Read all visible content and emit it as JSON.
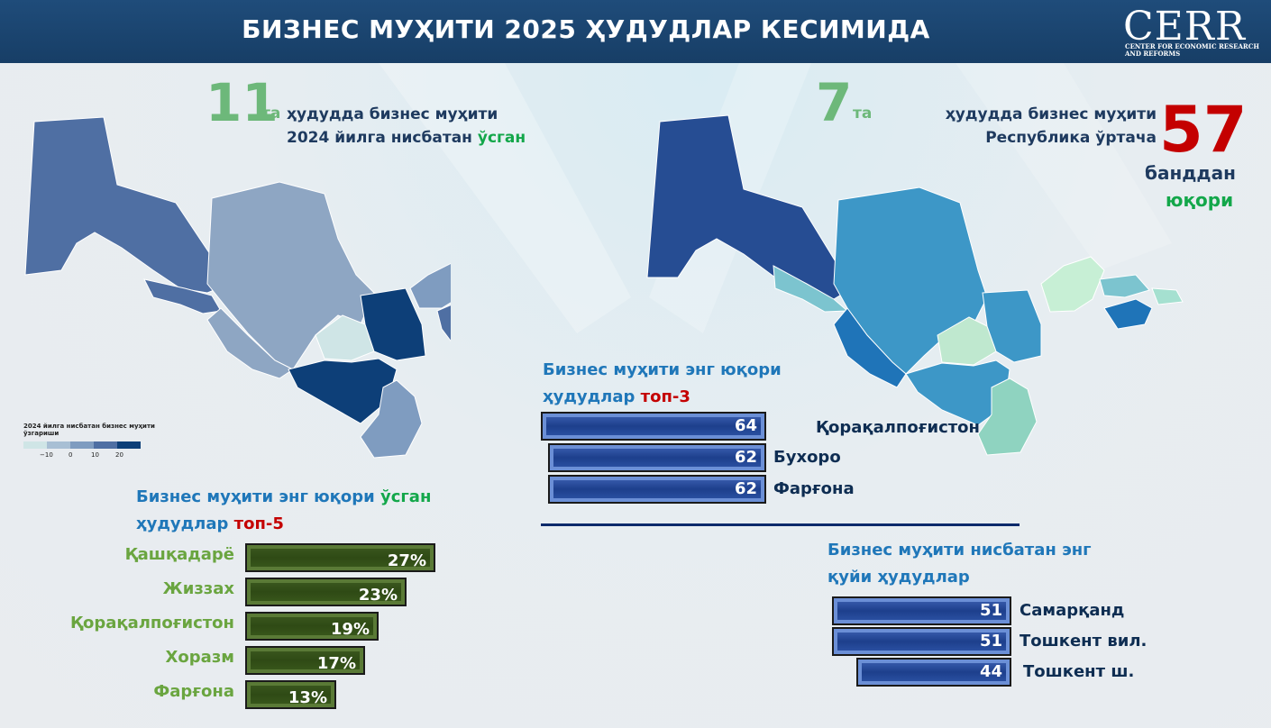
{
  "header": {
    "title": "БИЗНЕС МУҲИТИ 2025 ҲУДУДЛАР КЕСИМИДА",
    "logo": "CERR",
    "logo_sub": "CENTER FOR ECONOMIC RESEARCH AND REFORMS"
  },
  "left_stat": {
    "number": "11",
    "unit": "та",
    "line1": "ҳудудда бизнес муҳити",
    "line2_prefix": "2024 йилга нисбатан ",
    "line2_highlight": "ўсган"
  },
  "right_stat": {
    "number": "7",
    "unit": "та",
    "line1": "ҳудудда бизнес муҳити",
    "line2": "Республика ўртача",
    "score": "57",
    "line3": "банддан",
    "line4": "юқори"
  },
  "map_legend": {
    "title": "2024 йилга нисбатан бизнес муҳити ўзгариши",
    "ticks": [
      "−10",
      "0",
      "10",
      "20"
    ],
    "colors": [
      "#cfe5e6",
      "#a8bfd4",
      "#7f9cc0",
      "#4f6fa3",
      "#0d3f78"
    ]
  },
  "colors": {
    "green_bar": "#3a5a1c",
    "blue_bar": "#2e55a8",
    "map_left_high": "#0d3f78",
    "map_right_high": "#264d93"
  },
  "chart_data": [
    {
      "type": "bar",
      "title": "Бизнес муҳити энг юқори ўсган ҳудудлар топ-5",
      "categories": [
        "Қашқадарё",
        "Жиззах",
        "Қорақалпоғистон",
        "Хоразм",
        "Фарғона"
      ],
      "values": [
        27,
        23,
        19,
        17,
        13
      ],
      "value_labels": [
        "27%",
        "23%",
        "19%",
        "17%",
        "13%"
      ],
      "orientation": "horizontal"
    },
    {
      "type": "bar",
      "title": "Бизнес муҳити энг юқори ҳудудлар топ-3",
      "categories": [
        "Қорақалпоғистон",
        "Бухоро",
        "Фарғона"
      ],
      "values": [
        64,
        62,
        62
      ],
      "orientation": "horizontal"
    },
    {
      "type": "bar",
      "title": "Бизнес муҳити нисбатан энг қуйи ҳудудлар",
      "categories": [
        "Самарқанд",
        "Тошкент вил.",
        "Тошкент ш."
      ],
      "values": [
        51,
        51,
        44
      ],
      "orientation": "horizontal"
    }
  ],
  "headings": {
    "top5_line1_prefix": "Бизнес муҳити энг юқори ",
    "top5_line1_highlight": "ўсган",
    "top5_line2_prefix": "ҳудудлар ",
    "top5_line2_highlight": "топ-5",
    "top3_line1": "Бизнес муҳити энг юқори",
    "top3_line2_prefix": "ҳудудлар ",
    "top3_line2_highlight": "топ-3",
    "low_line1": "Бизнес муҳити нисбатан энг",
    "low_line2": "қуйи ҳудудлар"
  }
}
